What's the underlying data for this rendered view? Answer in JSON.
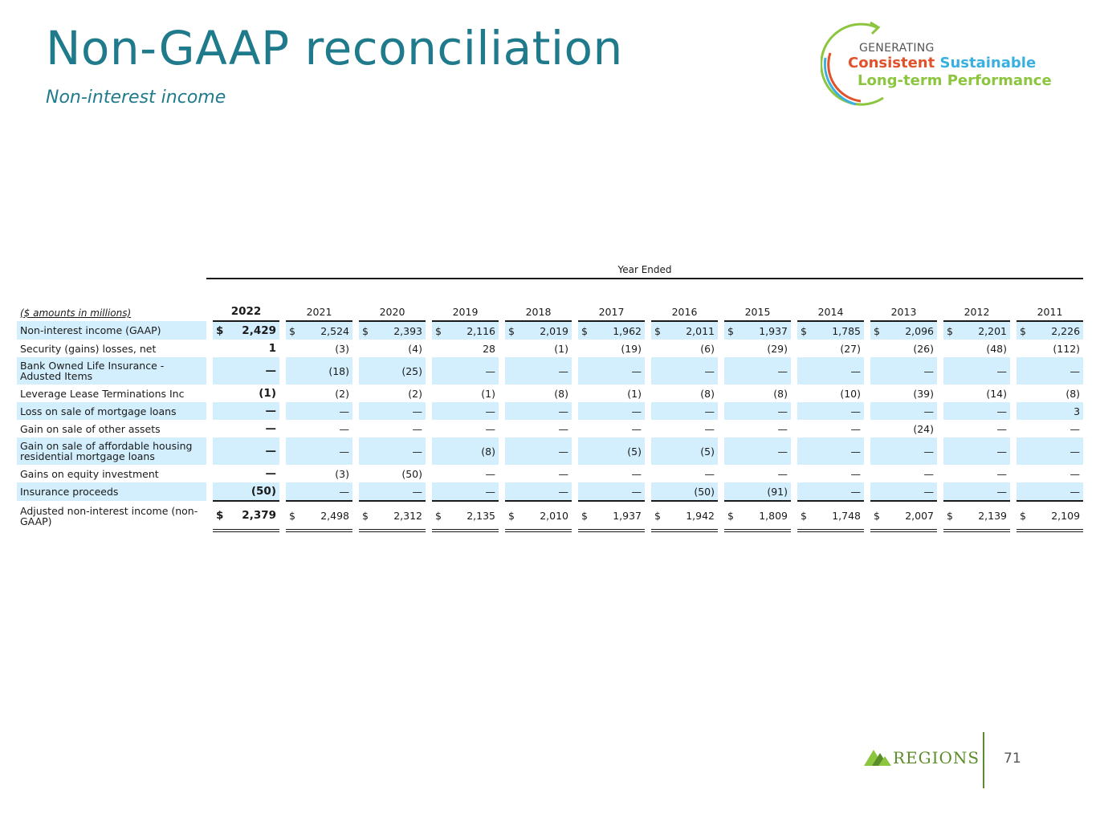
{
  "header": {
    "title": "Non-GAAP reconciliation",
    "subtitle": "Non-interest income"
  },
  "logo": {
    "line1": "GENERATING",
    "consistent": "Consistent",
    "sustainable": "Sustainable",
    "line3": "Long-term Performance",
    "colors": {
      "orange": "#e0522b",
      "blue": "#39b0e0",
      "green": "#8cc63f"
    }
  },
  "table": {
    "period_header": "Year Ended",
    "units_label": "($ amounts in millions)",
    "years": [
      "2022",
      "2021",
      "2020",
      "2019",
      "2018",
      "2017",
      "2016",
      "2015",
      "2014",
      "2013",
      "2012",
      "2011"
    ],
    "rows": [
      {
        "label": "Non-interest income (GAAP)",
        "currency": "$",
        "values": [
          "2,429",
          "2,524",
          "2,393",
          "2,116",
          "2,019",
          "1,962",
          "2,011",
          "1,937",
          "1,785",
          "2,096",
          "2,201",
          "2,226"
        ]
      },
      {
        "label": "Security (gains) losses, net",
        "currency": "",
        "values": [
          "1",
          "(3)",
          "(4)",
          "28",
          "(1)",
          "(19)",
          "(6)",
          "(29)",
          "(27)",
          "(26)",
          "(48)",
          "(112)"
        ]
      },
      {
        "label": "Bank Owned Life Insurance - Adusted Items",
        "currency": "",
        "values": [
          "—",
          "(18)",
          "(25)",
          "—",
          "—",
          "—",
          "—",
          "—",
          "—",
          "—",
          "—",
          "—"
        ]
      },
      {
        "label": "Leverage Lease Terminations Inc",
        "currency": "",
        "values": [
          "(1)",
          "(2)",
          "(2)",
          "(1)",
          "(8)",
          "(1)",
          "(8)",
          "(8)",
          "(10)",
          "(39)",
          "(14)",
          "(8)"
        ]
      },
      {
        "label": "Loss on sale of mortgage loans",
        "currency": "",
        "values": [
          "—",
          "—",
          "—",
          "—",
          "—",
          "—",
          "—",
          "—",
          "—",
          "—",
          "—",
          "3"
        ]
      },
      {
        "label": "Gain on sale of other assets",
        "currency": "",
        "values": [
          "—",
          "—",
          "—",
          "—",
          "—",
          "—",
          "—",
          "—",
          "—",
          "(24)",
          "—",
          "—"
        ]
      },
      {
        "label": "Gain on sale of affordable housing residential mortgage loans",
        "currency": "",
        "values": [
          "—",
          "—",
          "—",
          "(8)",
          "—",
          "(5)",
          "(5)",
          "—",
          "—",
          "—",
          "—",
          "—"
        ]
      },
      {
        "label": "Gains on equity investment",
        "currency": "",
        "values": [
          "—",
          "(3)",
          "(50)",
          "—",
          "—",
          "—",
          "—",
          "—",
          "—",
          "—",
          "—",
          "—"
        ]
      },
      {
        "label": "Insurance proceeds",
        "currency": "",
        "values": [
          "(50)",
          "—",
          "—",
          "—",
          "—",
          "—",
          "(50)",
          "(91)",
          "—",
          "—",
          "—",
          "—"
        ]
      }
    ],
    "total": {
      "label": "Adjusted non-interest income (non-GAAP)",
      "currency": "$",
      "values": [
        "2,379",
        "2,498",
        "2,312",
        "2,135",
        "2,010",
        "1,937",
        "1,942",
        "1,809",
        "1,748",
        "2,007",
        "2,139",
        "2,109"
      ]
    }
  },
  "footer": {
    "brand": "REGIONS",
    "page_number": "71",
    "brand_color": "#5b8c2a"
  },
  "colors": {
    "title": "#1f7a8c",
    "row_shade": "#d3eefc"
  }
}
